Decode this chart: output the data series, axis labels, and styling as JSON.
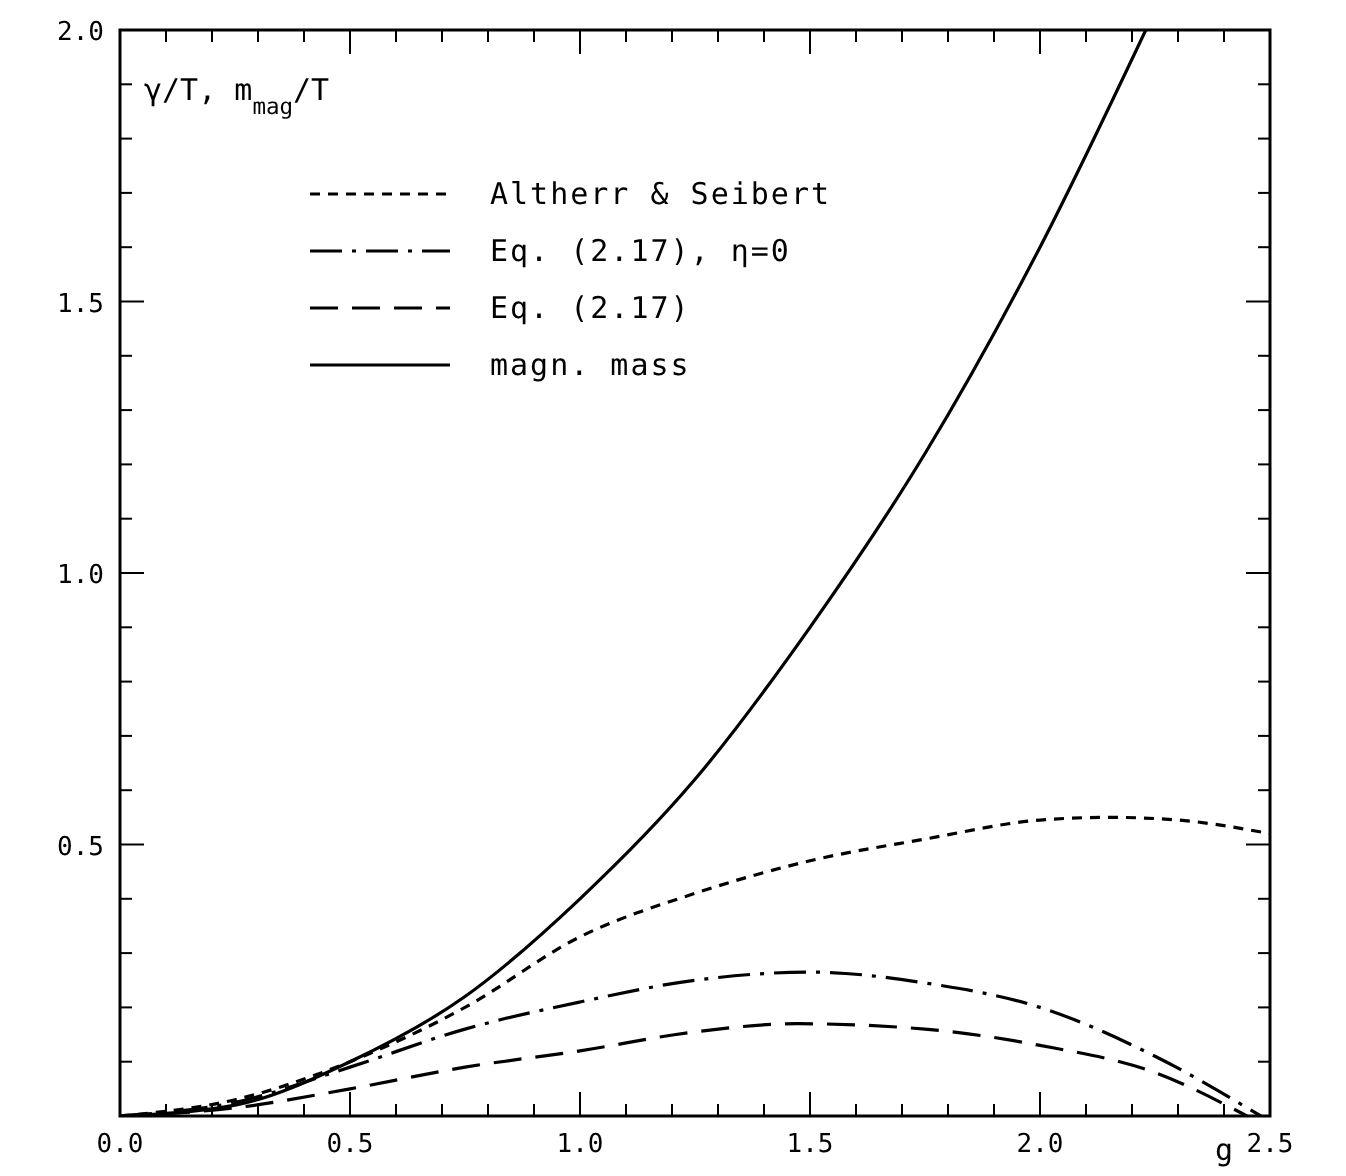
{
  "chart_data": {
    "type": "line",
    "xlabel": "g",
    "ylabel": "γ/T, m$_{mag}$/T",
    "xlim": [
      0,
      2.5
    ],
    "ylim": [
      0,
      2.0
    ],
    "xticks": [
      {
        "value": 0,
        "label": "0.0"
      },
      {
        "value": 0.1,
        "label": null
      },
      {
        "value": 0.2,
        "label": null
      },
      {
        "value": 0.3,
        "label": null
      },
      {
        "value": 0.4,
        "label": null
      },
      {
        "value": 0.5,
        "label": "0.5"
      },
      {
        "value": 0.6,
        "label": null
      },
      {
        "value": 0.7,
        "label": null
      },
      {
        "value": 0.8,
        "label": null
      },
      {
        "value": 0.9,
        "label": null
      },
      {
        "value": 1.0,
        "label": "1.0"
      },
      {
        "value": 1.1,
        "label": null
      },
      {
        "value": 1.2,
        "label": null
      },
      {
        "value": 1.3,
        "label": null
      },
      {
        "value": 1.4,
        "label": null
      },
      {
        "value": 1.5,
        "label": "1.5"
      },
      {
        "value": 1.6,
        "label": null
      },
      {
        "value": 1.7,
        "label": null
      },
      {
        "value": 1.8,
        "label": null
      },
      {
        "value": 1.9,
        "label": null
      },
      {
        "value": 2.0,
        "label": "2.0"
      },
      {
        "value": 2.1,
        "label": null
      },
      {
        "value": 2.2,
        "label": null
      },
      {
        "value": 2.3,
        "label": null
      },
      {
        "value": 2.4,
        "label": null
      },
      {
        "value": 2.5,
        "label": "2.5"
      }
    ],
    "yticks": [
      {
        "value": 0,
        "label": null
      },
      {
        "value": 0.1,
        "label": null
      },
      {
        "value": 0.2,
        "label": null
      },
      {
        "value": 0.3,
        "label": null
      },
      {
        "value": 0.4,
        "label": null
      },
      {
        "value": 0.5,
        "label": "0.5"
      },
      {
        "value": 0.6,
        "label": null
      },
      {
        "value": 0.7,
        "label": null
      },
      {
        "value": 0.8,
        "label": null
      },
      {
        "value": 0.9,
        "label": null
      },
      {
        "value": 1.0,
        "label": "1.0"
      },
      {
        "value": 1.1,
        "label": null
      },
      {
        "value": 1.2,
        "label": null
      },
      {
        "value": 1.3,
        "label": null
      },
      {
        "value": 1.4,
        "label": null
      },
      {
        "value": 1.5,
        "label": "1.5"
      },
      {
        "value": 1.6,
        "label": null
      },
      {
        "value": 1.7,
        "label": null
      },
      {
        "value": 1.8,
        "label": null
      },
      {
        "value": 1.9,
        "label": null
      },
      {
        "value": 2.0,
        "label": "2.0"
      }
    ],
    "legend": "top left",
    "grid": false,
    "series": [
      {
        "name": "Altherr & Seibert",
        "color": "#000000",
        "line_style": "dotted",
        "x": [
          0,
          0.25,
          0.5,
          0.75,
          1.0,
          1.25,
          1.5,
          1.75,
          2.0,
          2.15,
          2.3,
          2.5
        ],
        "values": [
          0,
          0.03,
          0.1,
          0.2,
          0.33,
          0.41,
          0.47,
          0.51,
          0.545,
          0.55,
          0.545,
          0.52
        ]
      },
      {
        "name": "Eq. (2.17), η=0",
        "color": "#000000",
        "line_style": "dashdot",
        "x": [
          0,
          0.25,
          0.5,
          0.75,
          1.0,
          1.25,
          1.5,
          1.75,
          2.0,
          2.25,
          2.48
        ],
        "values": [
          0,
          0.025,
          0.09,
          0.16,
          0.21,
          0.25,
          0.265,
          0.245,
          0.2,
          0.11,
          0
        ]
      },
      {
        "name": "Eq. (2.17)",
        "color": "#000000",
        "line_style": "dashed",
        "x": [
          0,
          0.25,
          0.5,
          0.75,
          1.0,
          1.25,
          1.47,
          1.75,
          2.0,
          2.25,
          2.45
        ],
        "values": [
          0,
          0.015,
          0.05,
          0.09,
          0.12,
          0.155,
          0.17,
          0.16,
          0.13,
          0.08,
          0
        ]
      },
      {
        "name": "magn. mass",
        "color": "#000000",
        "line_style": "solid",
        "x": [
          0,
          0.25,
          0.5,
          0.75,
          1.0,
          1.25,
          1.5,
          1.75,
          2.0,
          2.23
        ],
        "values": [
          0,
          0.02,
          0.1,
          0.22,
          0.4,
          0.62,
          0.9,
          1.22,
          1.6,
          2.0
        ]
      }
    ]
  }
}
